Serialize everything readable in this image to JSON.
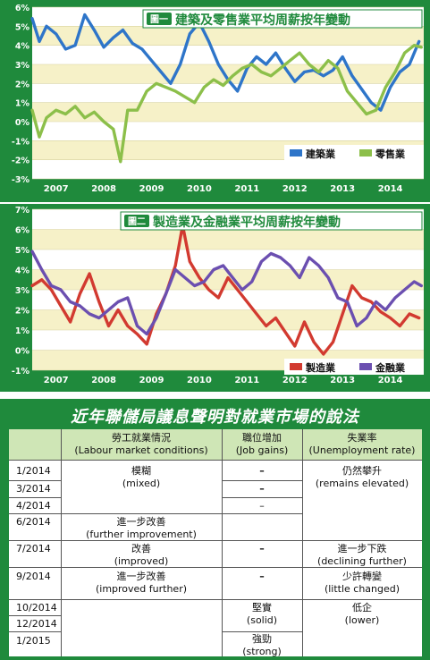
{
  "chart_data": [
    {
      "type": "line",
      "title": "建築及零售業平均周薪按年變動",
      "badge": "圖一",
      "x_ticks": [
        "2007",
        "2008",
        "2009",
        "2010",
        "2011",
        "2012",
        "2013",
        "2014"
      ],
      "y_ticks": [
        "6%",
        "5%",
        "4%",
        "3%",
        "2%",
        "1%",
        "0%",
        "-1%",
        "-2%",
        "-3%"
      ],
      "ylim": [
        -3,
        6
      ],
      "xlim": [
        2007.0,
        2015.2
      ],
      "series": [
        {
          "name": "建築業",
          "color": "#2e75c9",
          "x": [
            2007.0,
            2007.15,
            2007.3,
            2007.5,
            2007.7,
            2007.9,
            2008.1,
            2008.3,
            2008.5,
            2008.7,
            2008.9,
            2009.1,
            2009.3,
            2009.5,
            2009.7,
            2009.9,
            2010.1,
            2010.3,
            2010.5,
            2010.7,
            2010.9,
            2011.1,
            2011.3,
            2011.5,
            2011.7,
            2011.9,
            2012.1,
            2012.3,
            2012.5,
            2012.7,
            2012.9,
            2013.1,
            2013.3,
            2013.5,
            2013.7,
            2013.9,
            2014.1,
            2014.3,
            2014.5,
            2014.7,
            2014.9,
            2015.1
          ],
          "values": [
            5.4,
            4.2,
            5.0,
            4.6,
            3.8,
            4.0,
            5.6,
            4.8,
            3.9,
            4.4,
            4.8,
            4.1,
            3.8,
            3.2,
            2.6,
            2.0,
            3.0,
            4.6,
            5.2,
            4.2,
            3.0,
            2.2,
            1.6,
            2.8,
            3.4,
            3.0,
            3.6,
            2.8,
            2.1,
            2.6,
            2.7,
            2.4,
            2.7,
            3.4,
            2.4,
            1.7,
            1.0,
            0.6,
            1.8,
            2.6,
            3.0,
            4.2
          ]
        },
        {
          "name": "零售業",
          "color": "#8cbf4a",
          "x": [
            2007.0,
            2007.15,
            2007.3,
            2007.5,
            2007.7,
            2007.9,
            2008.1,
            2008.3,
            2008.5,
            2008.7,
            2008.85,
            2009.0,
            2009.2,
            2009.4,
            2009.6,
            2009.8,
            2010.0,
            2010.2,
            2010.4,
            2010.6,
            2010.8,
            2011.0,
            2011.2,
            2011.4,
            2011.6,
            2011.8,
            2012.0,
            2012.2,
            2012.4,
            2012.6,
            2012.8,
            2013.0,
            2013.2,
            2013.4,
            2013.6,
            2013.8,
            2014.0,
            2014.2,
            2014.4,
            2014.6,
            2014.8,
            2015.0,
            2015.15
          ],
          "values": [
            0.6,
            -0.8,
            0.2,
            0.6,
            0.4,
            0.8,
            0.2,
            0.5,
            0.0,
            -0.4,
            -2.1,
            0.6,
            0.6,
            1.6,
            2.0,
            1.8,
            1.6,
            1.3,
            1.0,
            1.8,
            2.2,
            1.9,
            2.4,
            2.8,
            3.0,
            2.6,
            2.4,
            2.8,
            3.2,
            3.6,
            3.0,
            2.6,
            3.2,
            2.8,
            1.6,
            1.0,
            0.4,
            0.6,
            1.8,
            2.6,
            3.6,
            4.0,
            3.9
          ]
        }
      ],
      "legend_position": "bottom-right"
    },
    {
      "type": "line",
      "title": "製造業及金融業平均周薪按年變動",
      "badge": "圖二",
      "x_ticks": [
        "2007",
        "2008",
        "2009",
        "2010",
        "2011",
        "2012",
        "2013",
        "2014"
      ],
      "y_ticks": [
        "7%",
        "6%",
        "5%",
        "4%",
        "3%",
        "2%",
        "1%",
        "0%",
        "-1%"
      ],
      "ylim": [
        -1,
        7
      ],
      "xlim": [
        2007.0,
        2015.2
      ],
      "series": [
        {
          "name": "製造業",
          "color": "#d23a30",
          "x": [
            2007.0,
            2007.2,
            2007.4,
            2007.6,
            2007.8,
            2008.0,
            2008.2,
            2008.4,
            2008.6,
            2008.8,
            2009.0,
            2009.2,
            2009.4,
            2009.6,
            2009.8,
            2010.0,
            2010.15,
            2010.3,
            2010.5,
            2010.7,
            2010.9,
            2011.1,
            2011.3,
            2011.5,
            2011.7,
            2011.9,
            2012.1,
            2012.3,
            2012.5,
            2012.7,
            2012.9,
            2013.1,
            2013.3,
            2013.5,
            2013.7,
            2013.9,
            2014.1,
            2014.3,
            2014.5,
            2014.7,
            2014.9,
            2015.1
          ],
          "values": [
            3.2,
            3.5,
            3.0,
            2.2,
            1.4,
            2.8,
            3.8,
            2.4,
            1.2,
            2.0,
            1.2,
            0.8,
            0.3,
            1.8,
            2.8,
            4.2,
            6.2,
            4.4,
            3.6,
            3.0,
            2.6,
            3.6,
            3.0,
            2.4,
            1.8,
            1.2,
            1.6,
            0.9,
            0.2,
            1.4,
            0.4,
            -0.2,
            0.4,
            1.8,
            3.2,
            2.6,
            2.4,
            1.9,
            1.6,
            1.2,
            1.8,
            1.6
          ]
        },
        {
          "name": "金融業",
          "color": "#6b4fb0",
          "x": [
            2007.0,
            2007.2,
            2007.4,
            2007.6,
            2007.8,
            2008.0,
            2008.2,
            2008.4,
            2008.6,
            2008.8,
            2009.0,
            2009.2,
            2009.4,
            2009.6,
            2009.8,
            2010.0,
            2010.2,
            2010.4,
            2010.6,
            2010.8,
            2011.0,
            2011.2,
            2011.4,
            2011.6,
            2011.8,
            2012.0,
            2012.2,
            2012.4,
            2012.6,
            2012.8,
            2013.0,
            2013.2,
            2013.4,
            2013.6,
            2013.8,
            2014.0,
            2014.2,
            2014.4,
            2014.6,
            2014.8,
            2015.0,
            2015.15
          ],
          "values": [
            4.9,
            4.0,
            3.2,
            3.0,
            2.4,
            2.2,
            1.8,
            1.6,
            2.0,
            2.4,
            2.6,
            1.2,
            0.8,
            1.6,
            2.8,
            4.0,
            3.6,
            3.2,
            3.4,
            4.0,
            4.2,
            3.6,
            3.0,
            3.4,
            4.4,
            4.8,
            4.6,
            4.2,
            3.6,
            4.6,
            4.2,
            3.6,
            2.6,
            2.4,
            1.2,
            1.6,
            2.4,
            2.0,
            2.6,
            3.0,
            3.4,
            3.2
          ]
        }
      ],
      "legend_position": "bottom-right"
    }
  ],
  "table": {
    "title": "近年聯儲局議息聲明對就業市場的說法",
    "headers": {
      "labour": "勞工就業情況",
      "labour_en": "(Labour market conditions)",
      "jobs": "職位增加",
      "jobs_en": "(Job gains)",
      "unemp": "失業率",
      "unemp_en": "(Unemployment rate)"
    },
    "dates": [
      "1/2014",
      "3/2014",
      "4/2014",
      "6/2014",
      "7/2014",
      "9/2014",
      "10/2014",
      "12/2014",
      "1/2015"
    ],
    "labour": [
      {
        "zh": "模糊",
        "en": "(mixed)"
      },
      {
        "zh": "進一步改善",
        "en": "(further improvement)"
      },
      {
        "zh": "改善",
        "en": "(improved)"
      },
      {
        "zh": "進一步改善",
        "en": "(improved further)"
      }
    ],
    "jobs": [
      "–",
      "–",
      "–",
      "–",
      "–"
    ],
    "jobs_solid": {
      "zh": "堅實",
      "en": "(solid)"
    },
    "jobs_strong": {
      "zh": "強勁",
      "en": "(strong)"
    },
    "unemp": [
      {
        "zh": "仍然攀升",
        "en": "(remains elevated)"
      },
      {
        "zh": "進一步下跌",
        "en": "(declining further)"
      },
      {
        "zh": "少許轉變",
        "en": "(little changed)"
      },
      {
        "zh": "低企",
        "en": "(lower)"
      }
    ]
  }
}
